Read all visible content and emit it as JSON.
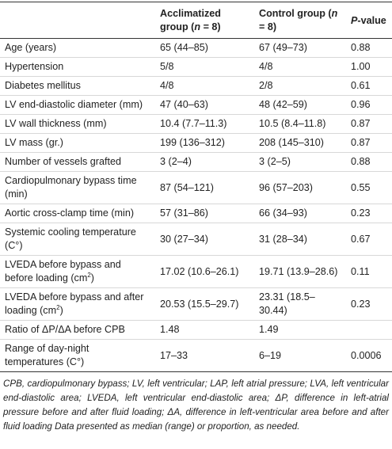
{
  "table": {
    "header": [
      [
        {
          "text": "Acclimatized group ("
        },
        {
          "text": "n",
          "italic": true
        },
        {
          "text": " = 8)"
        }
      ],
      [
        {
          "text": "Control group ("
        },
        {
          "text": "n",
          "italic": true
        },
        {
          "text": " = 8)"
        }
      ],
      [
        {
          "text": "P",
          "italic": true
        },
        {
          "text": "-value"
        }
      ]
    ],
    "rows": [
      [
        "Age (years)",
        "65 (44–85)",
        "67 (49–73)",
        "0.88"
      ],
      [
        "Hypertension",
        "5/8",
        "4/8",
        "1.00"
      ],
      [
        "Diabetes mellitus",
        "4/8",
        "2/8",
        "0.61"
      ],
      [
        "LV end-diastolic diameter (mm)",
        "47 (40–63)",
        "48 (42–59)",
        "0.96"
      ],
      [
        "LV wall thickness (mm)",
        "10.4 (7.7–11.3)",
        "10.5 (8.4–11.8)",
        "0.87"
      ],
      [
        "LV mass (gr.)",
        "199 (136–312)",
        "208 (145–310)",
        "0.87"
      ],
      [
        "Number of vessels grafted",
        "3 (2–4)",
        "3 (2–5)",
        "0.88"
      ],
      [
        "Cardiopulmonary bypass time (min)",
        "87 (54–121)",
        "96 (57–203)",
        "0.55"
      ],
      [
        "Aortic cross-clamp time (min)",
        "57 (31–86)",
        "66 (34–93)",
        "0.23"
      ],
      [
        "Systemic cooling temperature (C°)",
        "30 (27–34)",
        "31 (28–34)",
        "0.67"
      ],
      [
        [
          {
            "text": "LVEDA before bypass and before loading (cm"
          },
          {
            "text": "2",
            "sup": true
          },
          {
            "text": ")"
          }
        ],
        "17.02 (10.6–26.1)",
        "19.71 (13.9–28.6)",
        "0.11"
      ],
      [
        [
          {
            "text": "LVEDA before bypass and after loading (cm"
          },
          {
            "text": "2",
            "sup": true
          },
          {
            "text": ")"
          }
        ],
        "20.53 (15.5–29.7)",
        "23.31 (18.5–30.44)",
        "0.23"
      ],
      [
        "Ratio of ΔP/ΔA before CPB",
        "1.48",
        "1.49",
        ""
      ],
      [
        "Range of day-night temperatures (C°)",
        "17–33",
        "6–19",
        "0.0006"
      ]
    ]
  },
  "footnote": "CPB, cardiopulmonary bypass; LV, left ventricular; LAP, left atrial pressure; LVA, left ventricular end-diastolic area; LVEDA, left ventricular end-diastolic area; ΔP, difference in left-atrial pressure before and after fluid loading; ΔA, difference in left-ventricular area before and after fluid loading Data presented as median (range) or proportion, as needed."
}
